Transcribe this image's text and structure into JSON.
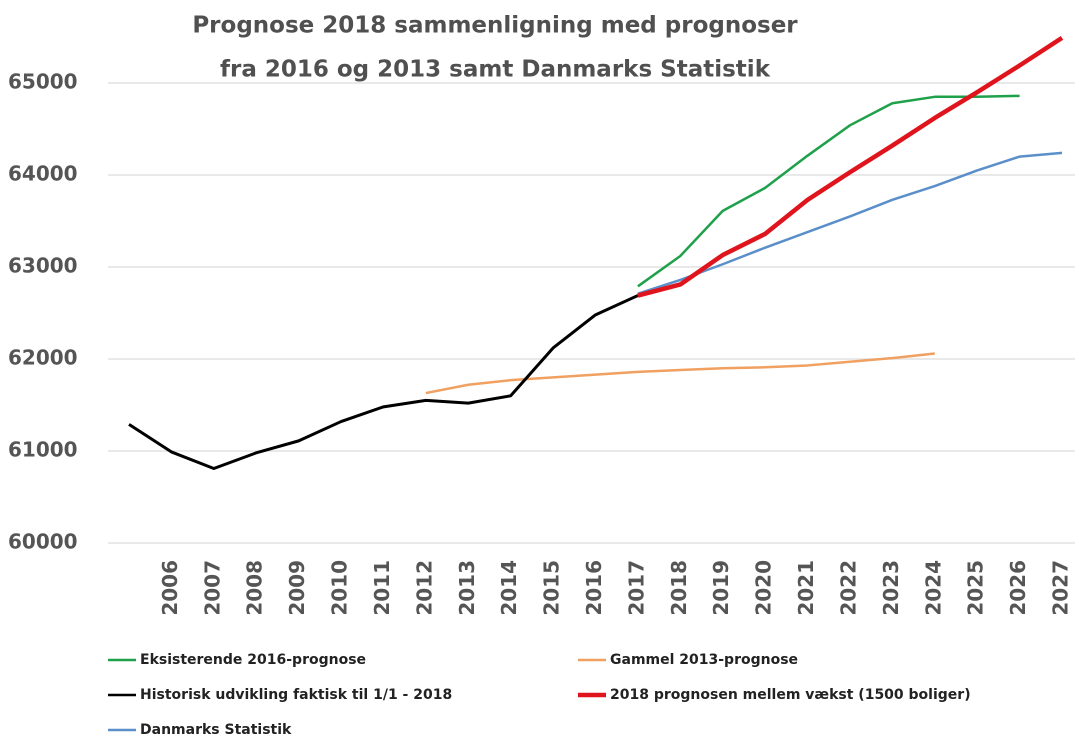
{
  "chart_data": {
    "type": "line",
    "title": [
      "Prognose 2018 sammenligning med prognoser",
      "fra 2016 og 2013 samt Danmarks Statistik"
    ],
    "categories": [
      null,
      "2006",
      "2007",
      "2008",
      "2009",
      "2010",
      "2011",
      "2012",
      "2013",
      "2014",
      "2015",
      "2016",
      "2017",
      "2018",
      "2019",
      "2020",
      "2021",
      "2022",
      "2023",
      "2024",
      "2025",
      "2026",
      "2027"
    ],
    "ylim": [
      60000,
      65500
    ],
    "yticks": [
      60000,
      61000,
      62000,
      63000,
      64000,
      65000
    ],
    "grid": true,
    "series": [
      {
        "name": "Eksisterende 2016-prognose",
        "color": "#1fa04a",
        "values": [
          null,
          null,
          null,
          null,
          null,
          null,
          null,
          null,
          null,
          null,
          null,
          null,
          62790,
          63120,
          63610,
          63860,
          64210,
          64540,
          64780,
          64850,
          64850,
          64860,
          null
        ]
      },
      {
        "name": "Gammel 2013-prognose",
        "color": "#f0a060",
        "values": [
          null,
          null,
          null,
          null,
          null,
          null,
          null,
          61630,
          61720,
          61770,
          61800,
          61830,
          61860,
          61880,
          61900,
          61910,
          61930,
          61970,
          62010,
          62060,
          null,
          null,
          null
        ]
      },
      {
        "name": "Historisk udvikling faktisk til 1/1 - 2018",
        "color": "#000000",
        "values": [
          61290,
          60990,
          60810,
          60980,
          61110,
          61320,
          61480,
          61550,
          61520,
          61600,
          62120,
          62480,
          62690,
          null,
          null,
          null,
          null,
          null,
          null,
          null,
          null,
          null,
          null
        ]
      },
      {
        "name": "2018 prognosen mellem vækst (1500 boliger)",
        "color": "#e0141c",
        "values": [
          null,
          null,
          null,
          null,
          null,
          null,
          null,
          null,
          null,
          null,
          null,
          null,
          62690,
          62810,
          63130,
          63360,
          63730,
          64030,
          64320,
          64620,
          64900,
          65190,
          65490
        ]
      },
      {
        "name": "Danmarks Statistik",
        "color": "#5b8fc9",
        "values": [
          null,
          null,
          null,
          null,
          null,
          null,
          null,
          null,
          null,
          null,
          null,
          null,
          62710,
          62860,
          63030,
          63210,
          63380,
          63550,
          63730,
          63880,
          64050,
          64200,
          64240
        ]
      }
    ]
  }
}
